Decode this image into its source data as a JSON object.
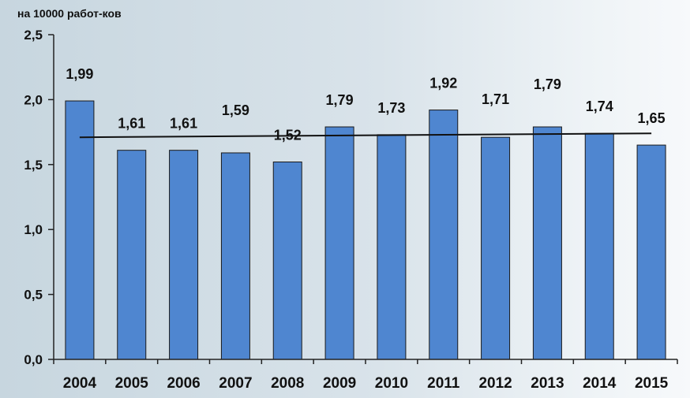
{
  "chart_data": {
    "type": "bar",
    "unit_label": "на 10000 работ-ков",
    "categories": [
      "2004",
      "2005",
      "2006",
      "2007",
      "2008",
      "2009",
      "2010",
      "2011",
      "2012",
      "2013",
      "2014",
      "2015"
    ],
    "values": [
      1.99,
      1.61,
      1.61,
      1.59,
      1.52,
      1.79,
      1.73,
      1.92,
      1.71,
      1.79,
      1.74,
      1.65
    ],
    "data_labels": [
      "1,99",
      "1,61",
      "1,61",
      "1,59",
      "1,52",
      "1,79",
      "1,73",
      "1,92",
      "1,71",
      "1,79",
      "1,74",
      "1,65"
    ],
    "ylim": [
      0,
      2.5
    ],
    "yticks": [
      0,
      0.5,
      1.0,
      1.5,
      2.0,
      2.5
    ],
    "ytick_labels": [
      "0,0",
      "0,5",
      "1,0",
      "1,5",
      "2,0",
      "2,5"
    ],
    "trendline": {
      "type": "linear",
      "start": 1.71,
      "end": 1.74
    },
    "grid": false,
    "legend": "none",
    "colors": {
      "bar": "#4f86d0",
      "bar_stroke": "#1a1a1a",
      "trend": "#111111",
      "axis": "#222222"
    }
  }
}
